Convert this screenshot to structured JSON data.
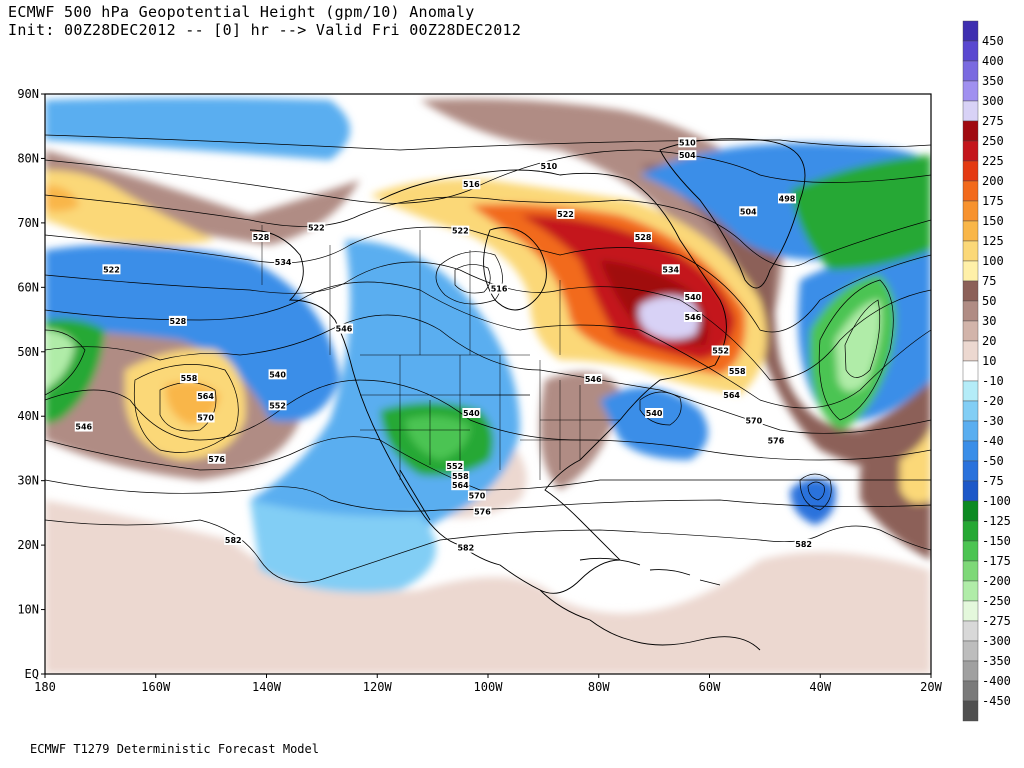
{
  "title": {
    "line1": "ECMWF 500 hPa Geopotential Height (gpm/10) Anomaly",
    "line2": "Init: 00Z28DEC2012 -- [0] hr --> Valid Fri 00Z28DEC2012"
  },
  "footer": "ECMWF T1279 Deterministic Forecast Model",
  "map": {
    "lat_labels": [
      "90N",
      "80N",
      "70N",
      "60N",
      "50N",
      "40N",
      "30N",
      "20N",
      "10N",
      "EQ"
    ],
    "lon_labels": [
      "180",
      "160W",
      "140W",
      "120W",
      "100W",
      "80W",
      "60W",
      "40W",
      "20W"
    ],
    "contour_labels": [
      {
        "text": "510",
        "lon": -64,
        "lat": 82.5
      },
      {
        "text": "504",
        "lon": -64,
        "lat": 80.5
      },
      {
        "text": "510",
        "lon": -89,
        "lat": 78.8
      },
      {
        "text": "516",
        "lon": -103,
        "lat": 76
      },
      {
        "text": "498",
        "lon": -46,
        "lat": 73.8
      },
      {
        "text": "504",
        "lon": -53,
        "lat": 71.8
      },
      {
        "text": "522",
        "lon": -86,
        "lat": 71.4
      },
      {
        "text": "522",
        "lon": -131,
        "lat": 69.3
      },
      {
        "text": "528",
        "lon": -141,
        "lat": 67.8
      },
      {
        "text": "522",
        "lon": -105,
        "lat": 68.8
      },
      {
        "text": "528",
        "lon": -72,
        "lat": 67.8
      },
      {
        "text": "534",
        "lon": -137,
        "lat": 63.9
      },
      {
        "text": "534",
        "lon": -67,
        "lat": 62.8
      },
      {
        "text": "522",
        "lon": -168,
        "lat": 62.8
      },
      {
        "text": "516",
        "lon": -98,
        "lat": 59.8
      },
      {
        "text": "540",
        "lon": -63,
        "lat": 58.5
      },
      {
        "text": "546",
        "lon": -63,
        "lat": 55.4
      },
      {
        "text": "528",
        "lon": -156,
        "lat": 54.8
      },
      {
        "text": "546",
        "lon": -126,
        "lat": 53.6
      },
      {
        "text": "552",
        "lon": -58,
        "lat": 50.2
      },
      {
        "text": "540",
        "lon": -138,
        "lat": 46.5
      },
      {
        "text": "558",
        "lon": -154,
        "lat": 45.9
      },
      {
        "text": "558",
        "lon": -55,
        "lat": 47
      },
      {
        "text": "546",
        "lon": -81,
        "lat": 45.8
      },
      {
        "text": "564",
        "lon": -151,
        "lat": 43.1
      },
      {
        "text": "564",
        "lon": -56,
        "lat": 43.3
      },
      {
        "text": "552",
        "lon": -138,
        "lat": 41.7
      },
      {
        "text": "570",
        "lon": -151,
        "lat": 39.8
      },
      {
        "text": "540",
        "lon": -103,
        "lat": 40.5
      },
      {
        "text": "540",
        "lon": -70,
        "lat": 40.5
      },
      {
        "text": "570",
        "lon": -52,
        "lat": 39.3
      },
      {
        "text": "546",
        "lon": -173,
        "lat": 38.4
      },
      {
        "text": "576",
        "lon": -48,
        "lat": 36.2
      },
      {
        "text": "576",
        "lon": -149,
        "lat": 33.4
      },
      {
        "text": "552",
        "lon": -106,
        "lat": 32.3
      },
      {
        "text": "558",
        "lon": -105,
        "lat": 30.7
      },
      {
        "text": "564",
        "lon": -105,
        "lat": 29.3
      },
      {
        "text": "570",
        "lon": -102,
        "lat": 27.7
      },
      {
        "text": "576",
        "lon": -101,
        "lat": 25.2
      },
      {
        "text": "582",
        "lon": -146,
        "lat": 20.8
      },
      {
        "text": "582",
        "lon": -104,
        "lat": 19.6
      },
      {
        "text": "582",
        "lon": -43,
        "lat": 20.2
      }
    ]
  },
  "colorbar": {
    "levels": [
      {
        "label": "450",
        "color": "#3e2fb0"
      },
      {
        "label": "400",
        "color": "#5a48d0"
      },
      {
        "label": "350",
        "color": "#7a6ae0"
      },
      {
        "label": "300",
        "color": "#a090f0"
      },
      {
        "label": "275",
        "color": "#d8d2f6"
      },
      {
        "label": "250",
        "color": "#a00a10"
      },
      {
        "label": "225",
        "color": "#c4161c"
      },
      {
        "label": "200",
        "color": "#e43a12"
      },
      {
        "label": "175",
        "color": "#f26a1c"
      },
      {
        "label": "150",
        "color": "#f7922e"
      },
      {
        "label": "125",
        "color": "#f9b648"
      },
      {
        "label": "100",
        "color": "#fbd878"
      },
      {
        "label": "75",
        "color": "#fff0a8"
      },
      {
        "label": "50",
        "color": "#8c6058"
      },
      {
        "label": "30",
        "color": "#b08c84"
      },
      {
        "label": "20",
        "color": "#d2b4aa"
      },
      {
        "label": "10",
        "color": "#ecd8d0"
      },
      {
        "label": "-10",
        "color": "#ffffff"
      },
      {
        "label": "-20",
        "color": "#b4ecf8"
      },
      {
        "label": "-30",
        "color": "#82cef5"
      },
      {
        "label": "-40",
        "color": "#5aaef0"
      },
      {
        "label": "-50",
        "color": "#3a8ee8"
      },
      {
        "label": "-75",
        "color": "#2a72dc"
      },
      {
        "label": "-100",
        "color": "#1d58c8"
      },
      {
        "label": "-125",
        "color": "#0c8a22"
      },
      {
        "label": "-150",
        "color": "#26a834"
      },
      {
        "label": "-175",
        "color": "#4cc452"
      },
      {
        "label": "-200",
        "color": "#7ed878"
      },
      {
        "label": "-250",
        "color": "#b0eca8"
      },
      {
        "label": "-275",
        "color": "#e4f8dc"
      },
      {
        "label": "-300",
        "color": "#d8d8d8"
      },
      {
        "label": "-350",
        "color": "#bdbdbd"
      },
      {
        "label": "-400",
        "color": "#a0a0a0"
      },
      {
        "label": "-450",
        "color": "#7a7a7a"
      },
      {
        "label": "",
        "color": "#505050"
      }
    ]
  }
}
